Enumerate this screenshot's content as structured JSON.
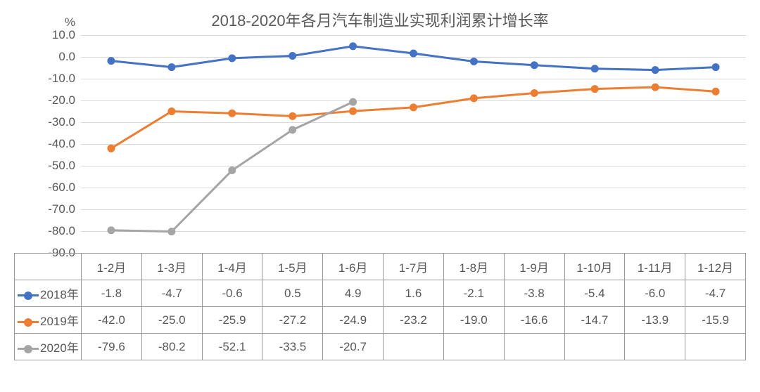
{
  "title": "2018-2020年各月汽车制造业实现利润累计增长率",
  "y_unit": "%",
  "chart": {
    "type": "line",
    "background_color": "#ffffff",
    "grid_color": "#d9d9d9",
    "text_color": "#595959",
    "title_fontsize": 22,
    "tick_fontsize": 17,
    "cell_fontsize": 17,
    "ylim": [
      -90,
      10
    ],
    "ytick_step": 10,
    "yticks": [
      "10.0",
      "0.0",
      "-10.0",
      "-20.0",
      "-30.0",
      "-40.0",
      "-50.0",
      "-60.0",
      "-70.0",
      "-80.0",
      "-90.0"
    ],
    "categories": [
      "1-2月",
      "1-3月",
      "1-4月",
      "1-5月",
      "1-6月",
      "1-7月",
      "1-8月",
      "1-9月",
      "1-10月",
      "1-11月",
      "1-12月"
    ],
    "line_width": 3,
    "marker_radius": 5,
    "marker_style": "circle",
    "series": [
      {
        "name": "2018年",
        "color": "#4472c4",
        "values": [
          -1.8,
          -4.7,
          -0.6,
          0.5,
          4.9,
          1.6,
          -2.1,
          -3.8,
          -5.4,
          -6.0,
          -4.7
        ],
        "display": [
          "-1.8",
          "-4.7",
          "-0.6",
          "0.5",
          "4.9",
          "1.6",
          "-2.1",
          "-3.8",
          "-5.4",
          "-6.0",
          "-4.7"
        ]
      },
      {
        "name": "2019年",
        "color": "#ed7d31",
        "values": [
          -42.0,
          -25.0,
          -25.9,
          -27.2,
          -24.9,
          -23.2,
          -19.0,
          -16.6,
          -14.7,
          -13.9,
          -15.9
        ],
        "display": [
          "-42.0",
          "-25.0",
          "-25.9",
          "-27.2",
          "-24.9",
          "-23.2",
          "-19.0",
          "-16.6",
          "-14.7",
          "-13.9",
          "-15.9"
        ]
      },
      {
        "name": "2020年",
        "color": "#a5a5a5",
        "values": [
          -79.6,
          -80.2,
          -52.1,
          -33.5,
          -20.7
        ],
        "display": [
          "-79.6",
          "-80.2",
          "-52.1",
          "-33.5",
          "-20.7",
          "",
          "",
          "",
          "",
          "",
          ""
        ]
      }
    ]
  }
}
